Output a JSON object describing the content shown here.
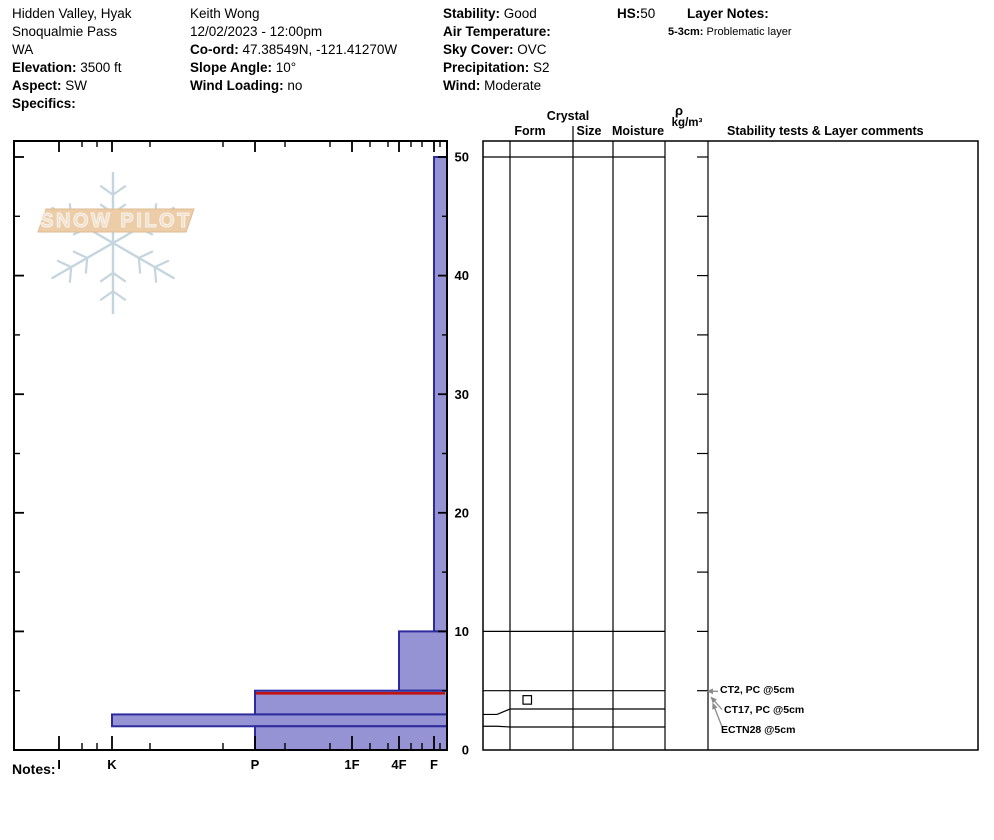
{
  "header": {
    "columns": [
      {
        "name": "location",
        "lines": [
          {
            "text": "Hidden Valley, Hyak"
          },
          {
            "text": "Snoqualmie Pass"
          },
          {
            "text": "WA"
          },
          {
            "label": "Elevation:",
            "text": " 3500 ft"
          },
          {
            "label": "Aspect:",
            "text": " SW"
          },
          {
            "label": "Specifics:",
            "text": ""
          }
        ]
      },
      {
        "name": "observer",
        "lines": [
          {
            "text": "Keith Wong"
          },
          {
            "text": "12/02/2023 - 12:00pm"
          },
          {
            "label": "Co-ord:",
            "text": " 47.38549N, -121.41270W"
          },
          {
            "label": "Slope Angle:",
            "text": " 10°"
          },
          {
            "label": "Wind Loading:",
            "text": " no"
          }
        ]
      },
      {
        "name": "conditions",
        "lines": [
          {
            "label": "Stability:",
            "text": " Good"
          },
          {
            "label": "Air Temperature:",
            "text": ""
          },
          {
            "label": "Sky Cover:",
            "text": " OVC"
          },
          {
            "label": "Precipitation:",
            "text": " S2"
          },
          {
            "label": "Wind:",
            "text": " Moderate"
          }
        ]
      },
      {
        "name": "hs",
        "lines": [
          {
            "label": "HS:",
            "text": "50"
          }
        ]
      },
      {
        "name": "layer_notes",
        "lines": [
          {
            "label": "Layer Notes:",
            "text": ""
          }
        ]
      }
    ],
    "layer_note": {
      "label": "5-3cm:",
      "text": " Problematic layer"
    }
  },
  "logo": {
    "text": "SNOW PILOT"
  },
  "table": {
    "headers": {
      "crystal": "Crystal",
      "form": "Form",
      "size": "Size",
      "moisture": "Moisture",
      "rho": "ρ",
      "rho_units": "kg/m³",
      "comments": "Stability tests & Layer comments"
    }
  },
  "notes_label": "Notes:",
  "chart_data": {
    "type": "bar",
    "subtype": "snow-hardness-profile",
    "title": "Snow profile: hardness vs depth",
    "depth_unit": "cm",
    "depth_range": [
      0,
      50
    ],
    "depth_ticks": [
      0,
      10,
      20,
      30,
      40,
      50
    ],
    "depth_minor_step": 5,
    "hs": 50,
    "hardness_categories": [
      "I",
      "K",
      "P",
      "1F",
      "4F",
      "F"
    ],
    "layers": [
      {
        "top_cm": 50,
        "bottom_cm": 10,
        "hardness": "F"
      },
      {
        "top_cm": 10,
        "bottom_cm": 5,
        "hardness": "4F"
      },
      {
        "top_cm": 5,
        "bottom_cm": 3,
        "hardness": "P",
        "problematic": true,
        "grain_form": "FC faceted crystals",
        "grain_symbol": "square"
      },
      {
        "top_cm": 3,
        "bottom_cm": 2,
        "hardness": "K"
      },
      {
        "top_cm": 2,
        "bottom_cm": 0,
        "hardness": "P"
      }
    ],
    "stability_tests": [
      {
        "label": "CT2, PC @5cm",
        "depth_cm": 5
      },
      {
        "label": "CT17, PC @5cm",
        "depth_cm": 5
      },
      {
        "label": "ECTN28 @5cm",
        "depth_cm": 5
      }
    ],
    "colors": {
      "bar_fill": "#9593d4",
      "bar_border": "#2d2b9e",
      "problem_line": "#c11212",
      "arrow": "#8a8a8a",
      "logo_flake": "#c2d3dd",
      "logo_band": "#edcba4",
      "logo_band_border": "#ddb88f"
    }
  }
}
